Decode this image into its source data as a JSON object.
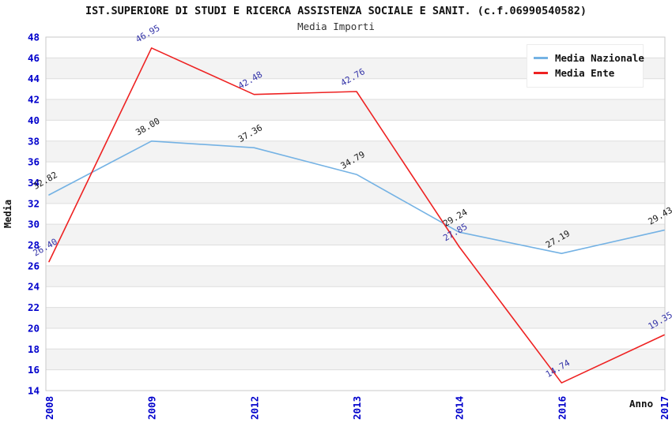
{
  "chart_data": {
    "type": "line",
    "title": "IST.SUPERIORE DI STUDI E RICERCA ASSISTENZA SOCIALE E SANIT. (c.f.06990540582)",
    "subtitle": "Media Importi",
    "xlabel": "Anno",
    "ylabel": "Media",
    "categories": [
      "2008",
      "2009",
      "2012",
      "2013",
      "2014",
      "2016",
      "2017"
    ],
    "series": [
      {
        "name": "Media Nazionale",
        "color": "#74b2e4",
        "label_color": "#1a1a1a",
        "values": [
          32.82,
          38.0,
          37.36,
          34.79,
          29.24,
          27.19,
          29.43
        ]
      },
      {
        "name": "Media Ente",
        "color": "#ee2222",
        "label_color": "#3434a8",
        "values": [
          26.4,
          46.95,
          42.48,
          42.76,
          27.85,
          14.74,
          19.35
        ]
      }
    ],
    "ylim": [
      14,
      48
    ],
    "ytick_step": 2,
    "tick_color": "#0000cc",
    "grid": "horizontal-bands",
    "band_color": "#f3f3f3",
    "gridline_color": "#dedede",
    "border_color": "#c9c9c9",
    "legend_position": "top-right",
    "label_decimals": 2
  }
}
